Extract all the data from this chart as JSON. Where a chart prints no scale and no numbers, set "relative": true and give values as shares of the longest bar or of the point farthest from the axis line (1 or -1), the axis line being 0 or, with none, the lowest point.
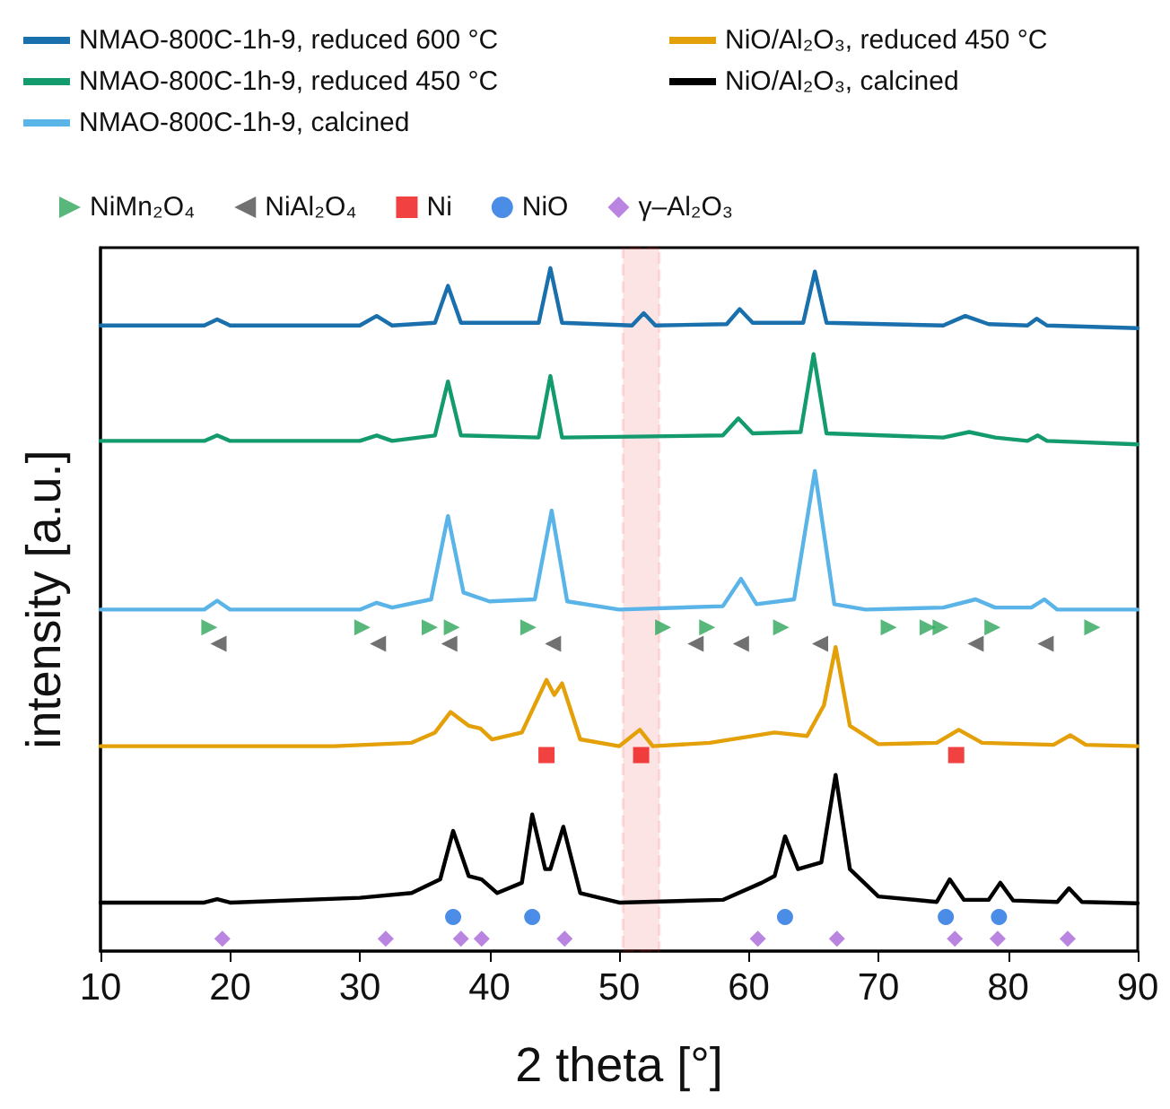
{
  "chart_data": {
    "type": "line",
    "xlabel": "2 theta [°]",
    "ylabel": "intensity [a.u.]",
    "relative": true,
    "xlim": [
      10,
      90
    ],
    "xticks": [
      10,
      20,
      30,
      40,
      50,
      60,
      70,
      80,
      90
    ],
    "legend": "top",
    "marker": "none",
    "bands": [
      {
        "axis": "x",
        "from": 50.3,
        "to": 53.1,
        "color": "#ee2222"
      }
    ],
    "series": [
      {
        "name": "NMAO-800C-1h-9, reduced 600 °C",
        "color": "#1a6fad",
        "x": [
          10,
          18,
          19,
          20,
          30,
          31.3,
          32.5,
          35.8,
          36.8,
          37.8,
          43.8,
          44.7,
          45.6,
          51,
          51.9,
          52.8,
          58.3,
          59.3,
          60.3,
          64.2,
          65.1,
          66,
          75,
          76.7,
          78.5,
          81.5,
          82.2,
          83,
          90
        ],
        "values": [
          0.916,
          0.916,
          0.925,
          0.916,
          0.916,
          0.93,
          0.916,
          0.92,
          0.974,
          0.92,
          0.92,
          1,
          0.92,
          0.916,
          0.934,
          0.916,
          0.918,
          0.94,
          0.92,
          0.92,
          0.995,
          0.92,
          0.916,
          0.93,
          0.918,
          0.916,
          0.926,
          0.916,
          0.912
        ]
      },
      {
        "name": "NMAO-800C-1h-9, reduced 450 °C",
        "color": "#139b6e",
        "x": [
          10,
          18,
          19,
          20,
          30,
          31.3,
          32.5,
          35.8,
          36.8,
          37.8,
          43.8,
          44.7,
          45.6,
          58,
          59.2,
          60.3,
          64,
          65,
          66,
          75,
          77,
          79,
          81.5,
          82.3,
          83,
          90
        ],
        "values": [
          0.747,
          0.747,
          0.755,
          0.747,
          0.747,
          0.755,
          0.747,
          0.755,
          0.834,
          0.755,
          0.752,
          0.842,
          0.752,
          0.755,
          0.78,
          0.758,
          0.76,
          0.874,
          0.758,
          0.752,
          0.76,
          0.752,
          0.747,
          0.755,
          0.747,
          0.742
        ]
      },
      {
        "name": "NMAO-800C-1h-9, calcined",
        "color": "#5ab4e8",
        "x": [
          10,
          18,
          19,
          20,
          30,
          31.3,
          32.5,
          35.5,
          36.8,
          38,
          40,
          43.5,
          44.8,
          46,
          50,
          58,
          59.4,
          60.6,
          63.5,
          65.1,
          66.6,
          69,
          75,
          77.5,
          79,
          81.8,
          82.8,
          83.8,
          90
        ],
        "values": [
          0.5,
          0.5,
          0.513,
          0.5,
          0.5,
          0.51,
          0.503,
          0.515,
          0.637,
          0.525,
          0.512,
          0.515,
          0.645,
          0.512,
          0.5,
          0.505,
          0.545,
          0.508,
          0.515,
          0.703,
          0.508,
          0.5,
          0.503,
          0.515,
          0.503,
          0.503,
          0.515,
          0.5,
          0.5
        ]
      },
      {
        "name": "NiO/Al₂O₃, reduced 450 °C",
        "color": "#e3a008",
        "x": [
          10,
          28,
          34,
          35.8,
          37,
          38.4,
          39.3,
          40.2,
          42.5,
          44.4,
          45,
          45.6,
          47,
          50,
          51.6,
          52.6,
          57,
          62,
          64.5,
          65.8,
          66.7,
          67.8,
          70,
          74.5,
          76.2,
          78,
          83.5,
          84.8,
          86,
          90
        ],
        "values": [
          0.3,
          0.3,
          0.305,
          0.32,
          0.35,
          0.33,
          0.326,
          0.31,
          0.32,
          0.397,
          0.375,
          0.392,
          0.31,
          0.3,
          0.324,
          0.3,
          0.305,
          0.32,
          0.315,
          0.36,
          0.445,
          0.33,
          0.303,
          0.305,
          0.324,
          0.305,
          0.302,
          0.316,
          0.302,
          0.3
        ]
      },
      {
        "name": "NiO/Al₂O₃, calcined",
        "color": "#000000",
        "x": [
          10,
          18,
          19,
          20,
          30,
          34,
          36.2,
          37.2,
          38.4,
          39.4,
          40.6,
          42.5,
          43.3,
          44.3,
          44.7,
          45.7,
          47,
          50,
          58,
          61,
          62,
          62.8,
          63.8,
          65.6,
          66.7,
          67.8,
          70,
          74.5,
          75.5,
          76.6,
          78.5,
          79.4,
          80.4,
          83.8,
          84.7,
          85.7,
          90
        ],
        "values": [
          0.071,
          0.071,
          0.076,
          0.071,
          0.078,
          0.085,
          0.105,
          0.176,
          0.11,
          0.105,
          0.085,
          0.1,
          0.2,
          0.12,
          0.12,
          0.182,
          0.085,
          0.071,
          0.075,
          0.1,
          0.11,
          0.168,
          0.12,
          0.13,
          0.258,
          0.12,
          0.08,
          0.072,
          0.105,
          0.075,
          0.075,
          0.1,
          0.074,
          0.072,
          0.092,
          0.072,
          0.07
        ]
      },
      {
        "type": "scatter",
        "name": "NiMn₂O₄",
        "color": "#2ea55a",
        "marker": "triangle-right",
        "x": [
          18.4,
          30.2,
          35.4,
          37.1,
          43.0,
          53.4,
          56.8,
          62.5,
          70.8,
          73.8,
          74.8,
          78.8,
          86.5
        ],
        "values": [
          0.474,
          0.474,
          0.474,
          0.474,
          0.474,
          0.474,
          0.474,
          0.474,
          0.474,
          0.474,
          0.474,
          0.474,
          0.474
        ]
      },
      {
        "type": "scatter",
        "name": "NiAl₂O₄",
        "color": "#4d4d4d",
        "marker": "triangle-left",
        "x": [
          19.1,
          31.4,
          36.9,
          44.9,
          55.9,
          59.4,
          65.5,
          77.5,
          82.9
        ],
        "values": [
          0.45,
          0.45,
          0.45,
          0.45,
          0.45,
          0.45,
          0.45,
          0.45,
          0.45
        ]
      },
      {
        "type": "scatter",
        "name": "Ni",
        "color": "#ee1111",
        "marker": "square",
        "x": [
          44.4,
          51.7,
          76.0
        ],
        "values": [
          0.287,
          0.287,
          0.287
        ]
      },
      {
        "type": "scatter",
        "name": "NiO",
        "color": "#1e6fe0",
        "marker": "circle",
        "x": [
          37.2,
          43.3,
          62.8,
          75.2,
          79.3
        ],
        "values": [
          0.05,
          0.05,
          0.05,
          0.05,
          0.05
        ]
      },
      {
        "type": "scatter",
        "name": "γ–Al₂O₃",
        "color": "#a866d9",
        "marker": "diamond",
        "x": [
          19.4,
          32.0,
          37.8,
          39.4,
          45.8,
          60.7,
          66.8,
          75.9,
          79.2,
          84.6
        ],
        "values": [
          0.018,
          0.018,
          0.018,
          0.018,
          0.018,
          0.018,
          0.018,
          0.018,
          0.018,
          0.018
        ]
      }
    ]
  }
}
